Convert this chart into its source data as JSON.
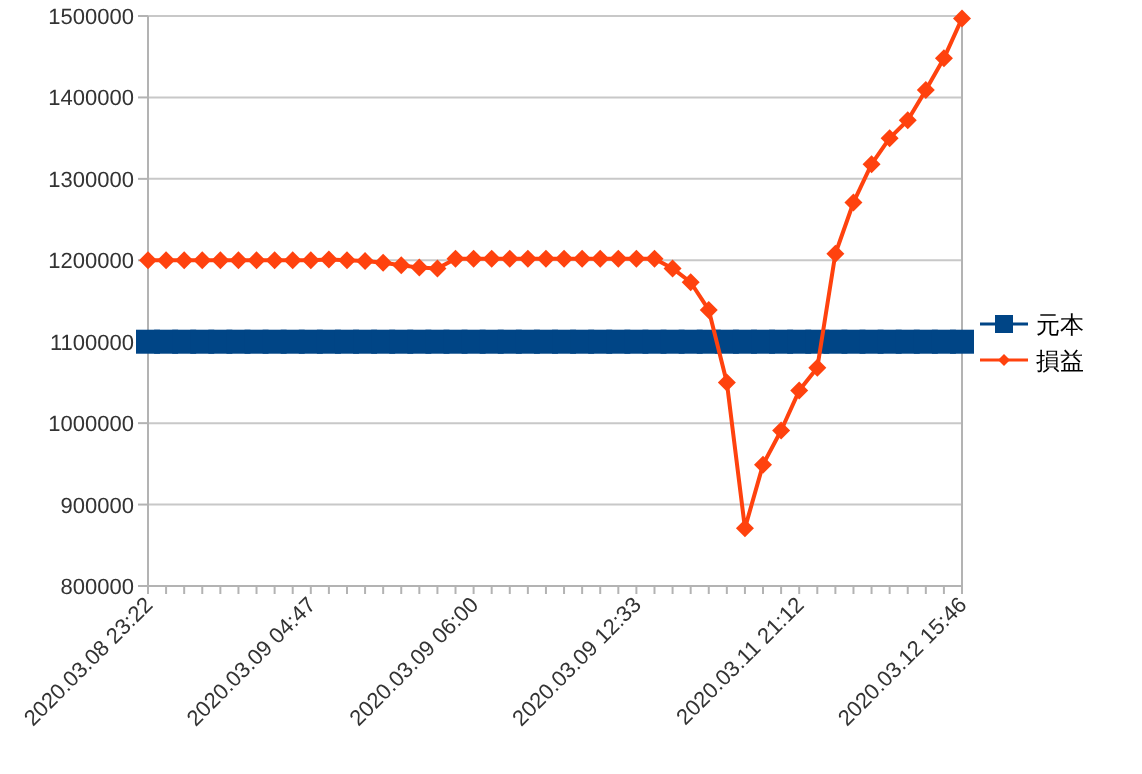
{
  "chart_data": {
    "type": "line",
    "categories": [
      "2020.03.08 23:22",
      null,
      null,
      null,
      null,
      null,
      null,
      null,
      null,
      "2020.03.09 04:47",
      null,
      null,
      null,
      null,
      null,
      null,
      null,
      null,
      "2020.03.09 06:00",
      null,
      null,
      null,
      null,
      null,
      null,
      null,
      null,
      "2020.03.09 12:33",
      null,
      null,
      null,
      null,
      null,
      null,
      null,
      null,
      "2020.03.11 21:12",
      null,
      null,
      null,
      null,
      null,
      null,
      null,
      null,
      "2020.03.12 15:46"
    ],
    "series": [
      {
        "name": "元本",
        "color": "#004586",
        "marker": "square",
        "values": [
          1100000,
          1100000,
          1100000,
          1100000,
          1100000,
          1100000,
          1100000,
          1100000,
          1100000,
          1100000,
          1100000,
          1100000,
          1100000,
          1100000,
          1100000,
          1100000,
          1100000,
          1100000,
          1100000,
          1100000,
          1100000,
          1100000,
          1100000,
          1100000,
          1100000,
          1100000,
          1100000,
          1100000,
          1100000,
          1100000,
          1100000,
          1100000,
          1100000,
          1100000,
          1100000,
          1100000,
          1100000,
          1100000,
          1100000,
          1100000,
          1100000,
          1100000,
          1100000,
          1100000,
          1100000,
          1100000
        ]
      },
      {
        "name": "損益",
        "color": "#ff420e",
        "marker": "diamond",
        "values": [
          1200000,
          1200000,
          1200000,
          1200000,
          1200000,
          1200000,
          1200000,
          1200000,
          1200000,
          1200000,
          1201000,
          1200000,
          1199000,
          1197000,
          1194000,
          1191000,
          1190000,
          1202000,
          1202000,
          1202000,
          1202000,
          1202000,
          1202000,
          1202000,
          1202000,
          1202000,
          1202000,
          1202000,
          1202000,
          1190000,
          1173000,
          1139000,
          1050000,
          871000,
          949000,
          991000,
          1040000,
          1068000,
          1208000,
          1271000,
          1318000,
          1350000,
          1372000,
          1409000,
          1448000,
          1497000
        ]
      }
    ],
    "ylim": [
      800000,
      1500000
    ],
    "yticks": [
      800000,
      900000,
      1000000,
      1100000,
      1200000,
      1300000,
      1400000,
      1500000
    ],
    "grid": "y",
    "legend": "right"
  }
}
